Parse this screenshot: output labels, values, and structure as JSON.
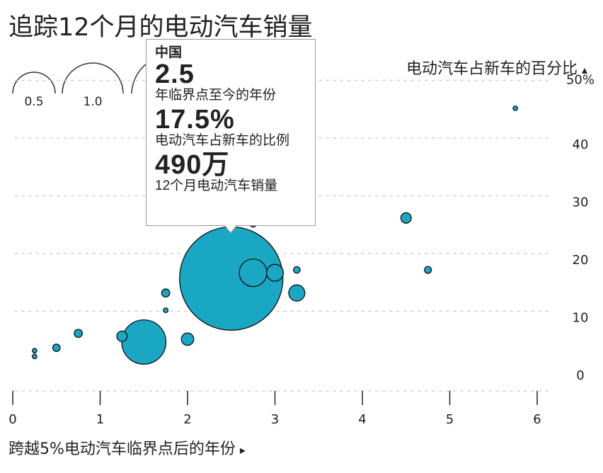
{
  "colors": {
    "bubble": "#1aa7c4",
    "bubble_stroke": "#111111",
    "grid": "#cfcfcf",
    "axis": "#222222"
  },
  "chart_data": {
    "type": "scatter",
    "title": "追踪12个月的电动汽车销量",
    "xlabel": "跨越5%电动汽车临界点后的年份",
    "x_arrow": "▸",
    "ylabel": "电动汽车占新车的百分比",
    "y_arrow": "▴",
    "xlim": [
      0,
      6.5
    ],
    "ylim": [
      0,
      50
    ],
    "x_ticks": [
      "0",
      "1",
      "2",
      "3",
      "4",
      "5",
      "6"
    ],
    "y_ticks": [
      "50%",
      "40",
      "30",
      "20",
      "10",
      "0"
    ],
    "size_legend": [
      "0.5",
      "1.0"
    ],
    "points": [
      {
        "x": 2.5,
        "y": 17.5,
        "sales": 490
      },
      {
        "x": 1.5,
        "y": 6.5,
        "sales": 90
      },
      {
        "x": 2.75,
        "y": 18.5,
        "sales": 35
      },
      {
        "x": 3.0,
        "y": 18.5,
        "sales": 13
      },
      {
        "x": 3.25,
        "y": 15.0,
        "sales": 12
      },
      {
        "x": 1.25,
        "y": 7.5,
        "sales": 5
      },
      {
        "x": 2.0,
        "y": 7.0,
        "sales": 7
      },
      {
        "x": 4.5,
        "y": 28.0,
        "sales": 5
      },
      {
        "x": 2.75,
        "y": 27.0,
        "sales": 2
      },
      {
        "x": 4.75,
        "y": 19.0,
        "sales": 2.2
      },
      {
        "x": 0.75,
        "y": 8.0,
        "sales": 3
      },
      {
        "x": 1.75,
        "y": 15.0,
        "sales": 3
      },
      {
        "x": 3.25,
        "y": 19.0,
        "sales": 2
      },
      {
        "x": 0.5,
        "y": 5.5,
        "sales": 2.5
      },
      {
        "x": 1.75,
        "y": 12.0,
        "sales": 1
      },
      {
        "x": 0.25,
        "y": 4.0,
        "sales": 0.6
      },
      {
        "x": 0.25,
        "y": 5.0,
        "sales": 0.3
      },
      {
        "x": 5.75,
        "y": 47.0,
        "sales": 0.4
      }
    ],
    "tooltip": {
      "country": "中国",
      "years_value": "2.5",
      "years_label": "年临界点至今的年份",
      "share_value": "17.5%",
      "share_label": "电动汽车占新车的比例",
      "sales_value": "490万",
      "sales_label": "12个月电动汽车销量"
    }
  }
}
